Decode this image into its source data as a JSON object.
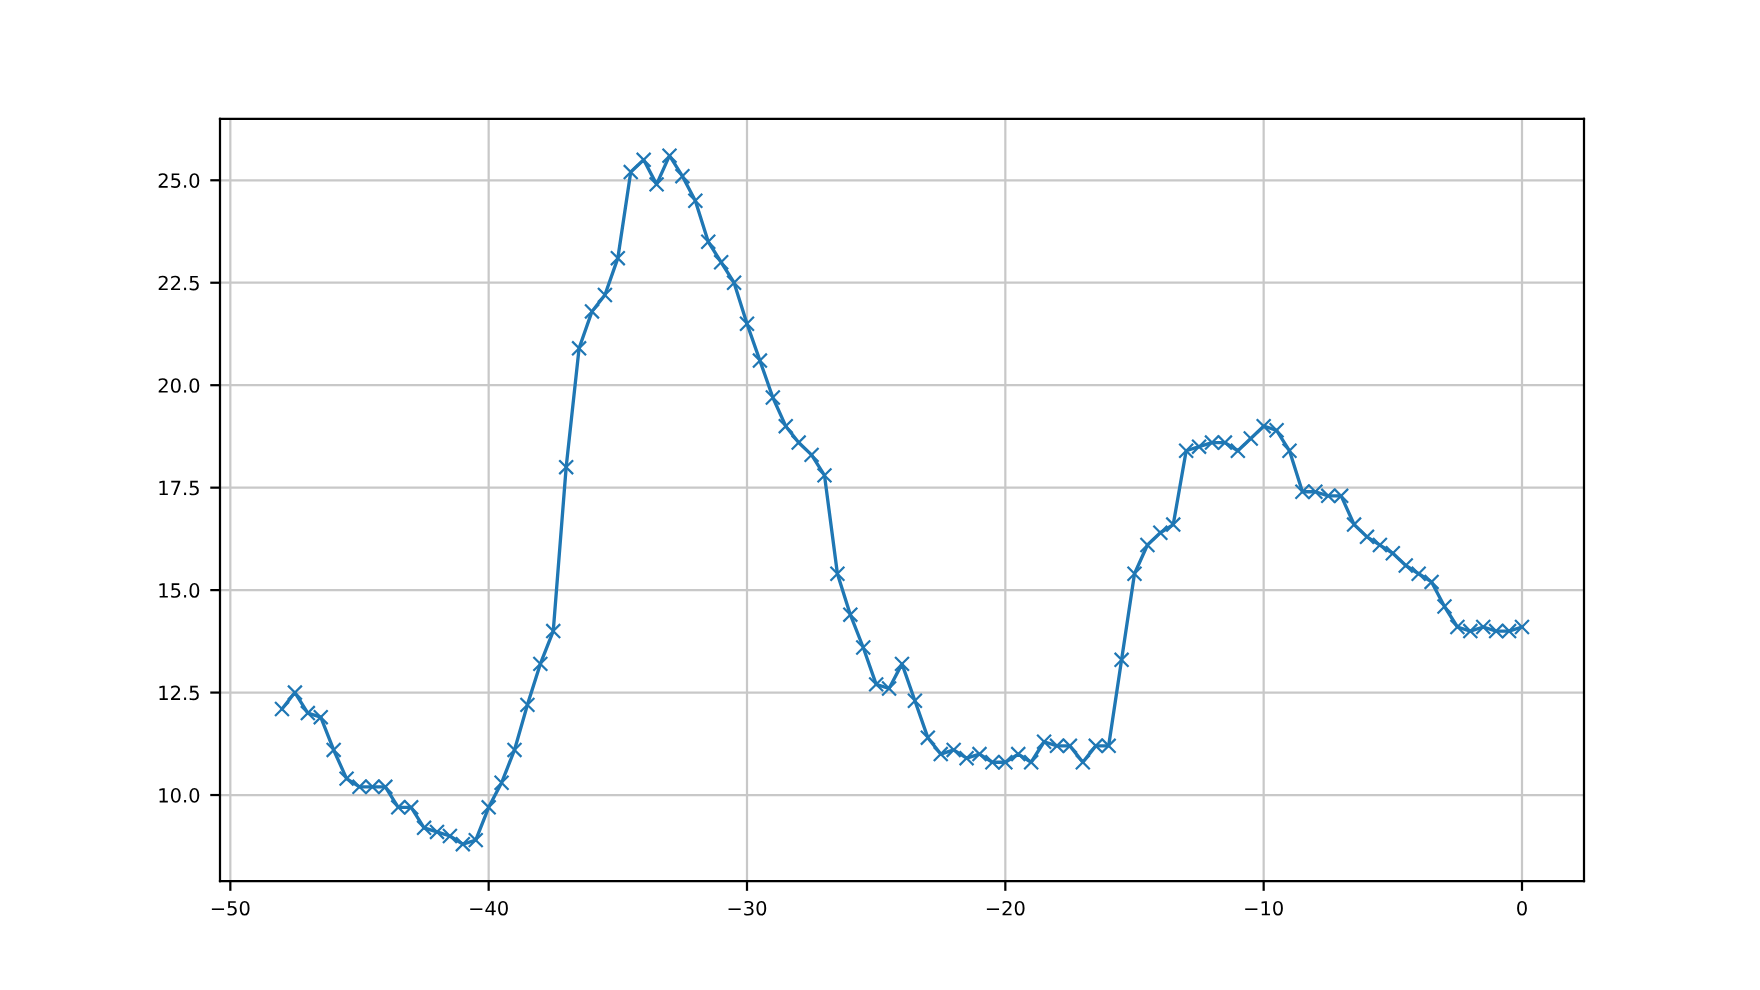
{
  "chart_data": {
    "type": "line",
    "marker": "cross",
    "grid": true,
    "xlim": [
      -50.4,
      2.4
    ],
    "xticks": [
      {
        "value": -50,
        "label": "−50"
      },
      {
        "value": -40,
        "label": "−40"
      },
      {
        "value": -30,
        "label": "−30"
      },
      {
        "value": -20,
        "label": "−20"
      },
      {
        "value": -10,
        "label": "−10"
      },
      0
    ],
    "ylim": [
      7.9,
      26.5
    ],
    "yticks": [
      {
        "value": 10,
        "label": "10.0"
      },
      12.5,
      {
        "value": 15,
        "label": "15.0"
      },
      17.5,
      {
        "value": 20,
        "label": "20.0"
      },
      22.5,
      {
        "value": 25,
        "label": "25.0"
      }
    ],
    "x": [
      -48,
      -47.5,
      -47,
      -46.5,
      -46,
      -45.5,
      -45,
      -44.5,
      -44,
      -43.5,
      -43,
      -42.5,
      -42,
      -41.5,
      -41,
      -40.5,
      -40,
      -39.5,
      -39,
      -38.5,
      -38,
      -37.5,
      -37,
      -36.5,
      -36,
      -35.5,
      -35,
      -34.5,
      -34,
      -33.5,
      -33,
      -32.5,
      -32,
      -31.5,
      -31,
      -30.5,
      -30,
      -29.5,
      -29,
      -28.5,
      -28,
      -27.5,
      -27,
      -26.5,
      -26,
      -25.5,
      -25,
      -24.5,
      -24,
      -23.5,
      -23,
      -22.5,
      -22,
      -21.5,
      -21,
      -20.5,
      -20,
      -19.5,
      -19,
      -18.5,
      -18,
      -17.5,
      -17,
      -16.5,
      -16,
      -15.5,
      -15,
      -14.5,
      -14,
      -13.5,
      -13,
      -12.5,
      -12,
      -11.5,
      -11,
      -10.5,
      -10,
      -9.5,
      -9,
      -8.5,
      -8,
      -7.5,
      -7,
      -6.5,
      -6,
      -5.5,
      -5,
      -4.5,
      -4,
      -3.5,
      -3,
      -2.5,
      -2,
      -1.5,
      -1,
      -0.5,
      0
    ],
    "series": [
      {
        "color": "#1f77b4",
        "values": [
          12.1,
          12.5,
          12.0,
          11.9,
          11.1,
          10.4,
          10.2,
          10.2,
          10.2,
          9.7,
          9.7,
          9.2,
          9.1,
          9.0,
          8.8,
          8.9,
          9.7,
          10.3,
          11.1,
          12.2,
          13.2,
          14.0,
          18.0,
          20.9,
          21.8,
          22.2,
          23.1,
          25.2,
          25.5,
          24.9,
          25.6,
          25.1,
          24.5,
          23.5,
          23.0,
          22.5,
          21.5,
          20.6,
          19.7,
          19.0,
          18.6,
          18.3,
          17.8,
          15.4,
          14.4,
          13.6,
          12.7,
          12.6,
          13.2,
          12.3,
          11.4,
          11.0,
          11.1,
          10.9,
          11.0,
          10.8,
          10.8,
          11.0,
          10.8,
          11.3,
          11.2,
          11.2,
          10.8,
          11.2,
          11.2,
          13.3,
          15.4,
          16.1,
          16.4,
          16.6,
          18.4,
          18.5,
          18.6,
          18.6,
          18.4,
          18.7,
          19.0,
          18.9,
          18.4,
          17.4,
          17.4,
          17.3,
          17.3,
          16.6,
          16.3,
          16.1,
          15.9,
          15.6,
          15.4,
          15.2,
          14.6,
          14.1,
          14.0,
          14.1,
          14.0,
          14.0,
          14.1
        ]
      }
    ]
  }
}
